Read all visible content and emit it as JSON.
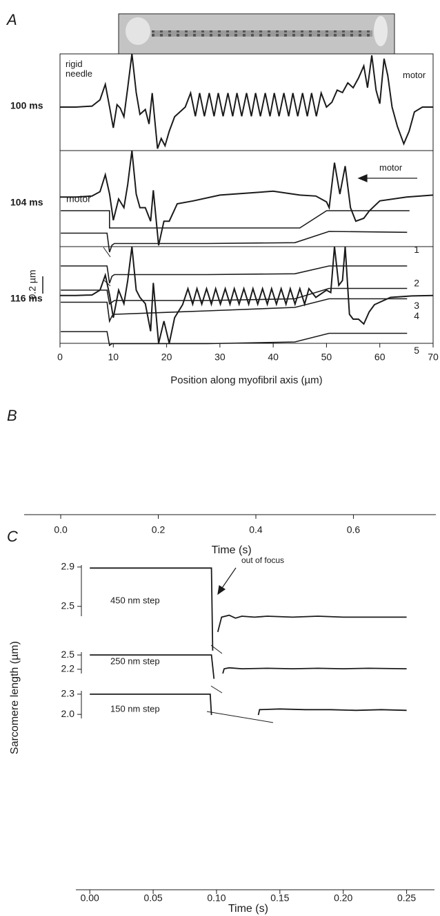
{
  "chart_data": [
    {
      "type": "line",
      "label": "A",
      "xlabel": "Position along myofibril axis (µm)",
      "xlim": [
        0,
        70
      ],
      "xticks": [
        0,
        10,
        20,
        30,
        40,
        50,
        60,
        70
      ],
      "ylim": [
        -1,
        1
      ],
      "annotations": [
        "rigid needle",
        "motor",
        "motor"
      ],
      "series": [
        {
          "name": "100 ms",
          "color": "#1a1a1a",
          "x": [
            0,
            3,
            6,
            7.5,
            8.5,
            9.3,
            10,
            10.7,
            11.3,
            12,
            12.7,
            13.5,
            14.3,
            15,
            16,
            16.7,
            17.3,
            18.3,
            19,
            19.7,
            20.5,
            21.5,
            22.5,
            23.5,
            24.5,
            25.4,
            26.2,
            27.1,
            28,
            28.9,
            29.7,
            30.6,
            31.5,
            32.4,
            33.2,
            34.1,
            35,
            35.9,
            36.7,
            37.6,
            38.5,
            39.4,
            40.2,
            41.1,
            42,
            42.9,
            43.7,
            44.6,
            45.5,
            46.4,
            47.2,
            48.1,
            49,
            50,
            51,
            52,
            53,
            54,
            55,
            56,
            57,
            57.7,
            58.5,
            59.3,
            60,
            60.8,
            61.5,
            62.3,
            63.3,
            64.5,
            65.5,
            66.5,
            68,
            70
          ],
          "values": [
            -0.1,
            -0.1,
            -0.08,
            0.05,
            0.37,
            -0.1,
            -0.53,
            -0.05,
            -0.12,
            -0.3,
            0.3,
            1,
            0.2,
            -0.25,
            -0.15,
            -0.45,
            0.19,
            -0.96,
            -0.75,
            -0.9,
            -0.6,
            -0.3,
            -0.2,
            -0.1,
            0.19,
            -0.29,
            0.19,
            -0.29,
            0.19,
            -0.29,
            0.19,
            -0.29,
            0.19,
            -0.29,
            0.19,
            -0.29,
            0.19,
            -0.29,
            0.19,
            -0.29,
            0.19,
            -0.29,
            0.19,
            -0.29,
            0.19,
            -0.29,
            0.19,
            -0.29,
            0.19,
            -0.29,
            0.19,
            -0.29,
            0.19,
            -0.1,
            0.0,
            0.25,
            0.2,
            0.4,
            0.3,
            0.5,
            0.75,
            0.3,
            0.97,
            0.25,
            -0.03,
            0.9,
            0.55,
            -0.1,
            -0.5,
            -0.86,
            -0.6,
            -0.2,
            -0.1,
            -0.1
          ]
        },
        {
          "name": "104 ms",
          "color": "#1a1a1a",
          "x": [
            0,
            3,
            6,
            7.5,
            8.5,
            9.3,
            10,
            11,
            12,
            12.7,
            13.5,
            14.3,
            15,
            16,
            17,
            17.5,
            18.5,
            19.5,
            20.5,
            22,
            25,
            30,
            35,
            40,
            45,
            48,
            50,
            50.5,
            51.5,
            52.5,
            53.5,
            54.5,
            55.5,
            57,
            58,
            60,
            65,
            70
          ],
          "values": [
            0.04,
            0.04,
            0.06,
            0.15,
            0.5,
            0.1,
            -0.44,
            0,
            -0.18,
            0.3,
            1,
            0.1,
            -0.18,
            -0.18,
            -0.46,
            0.18,
            -0.96,
            -0.46,
            -0.46,
            -0.1,
            -0.04,
            0.08,
            0.12,
            0.16,
            0.08,
            0.06,
            -0.06,
            -0.18,
            0.75,
            0.1,
            0.68,
            -0.18,
            -0.46,
            -0.4,
            -0.25,
            -0.04,
            0.04,
            0.08
          ]
        },
        {
          "name": "116 ms",
          "color": "#1a1a1a",
          "x": [
            0,
            3,
            6,
            7.5,
            8.5,
            9.3,
            10,
            11,
            12,
            12.7,
            13.5,
            14.3,
            15,
            16,
            17,
            17.5,
            18.5,
            19.5,
            20.5,
            21.5,
            23,
            24,
            24.9,
            25.7,
            26.6,
            27.5,
            28.4,
            29.2,
            30.1,
            31,
            31.9,
            32.7,
            33.6,
            34.5,
            35.4,
            36.2,
            37.1,
            38,
            38.9,
            39.7,
            40.6,
            41.5,
            42.4,
            43.2,
            44.1,
            45,
            45.9,
            46.7,
            48,
            50,
            50.8,
            51.5,
            52.3,
            53,
            53.5,
            54.3,
            55,
            56,
            57,
            58,
            59,
            62,
            66,
            70
          ],
          "values": [
            -0.01,
            -0.01,
            0,
            0.1,
            0.41,
            0,
            -0.47,
            0.1,
            -0.18,
            0.3,
            1,
            0.1,
            -0.05,
            -0.18,
            -0.75,
            0.25,
            -1,
            -0.54,
            -1,
            -0.47,
            -0.2,
            0.13,
            -0.19,
            0.13,
            -0.19,
            0.13,
            -0.19,
            0.13,
            -0.19,
            0.13,
            -0.19,
            0.13,
            -0.19,
            0.13,
            -0.19,
            0.13,
            -0.19,
            0.13,
            -0.19,
            0.13,
            -0.19,
            0.13,
            -0.19,
            0.13,
            -0.19,
            0.13,
            -0.19,
            0.13,
            -0.05,
            0.1,
            0.05,
            1,
            0.2,
            0.3,
            1,
            -0.4,
            -0.5,
            -0.5,
            -0.6,
            -0.35,
            -0.2,
            -0.05,
            -0.02,
            -0.01
          ]
        }
      ]
    },
    {
      "type": "line",
      "label": "B",
      "xlabel": "Time (s)",
      "xlim": [
        -0.075,
        0.769
      ],
      "xticks": [
        {
          "value": 0,
          "label": "0.0"
        },
        0.2,
        0.4,
        0.6
      ],
      "ylim": [
        0,
        3.6
      ],
      "scale_bar": {
        "value": 0.2,
        "label": "0.2 µm"
      },
      "series": [
        {
          "name": "motor",
          "color": "#1a1a1a",
          "x": [
            0,
            0.1,
            0.1,
            0.49,
            0.545,
            0.715
          ],
          "values": [
            3.52,
            3.52,
            3.32,
            3.32,
            3.52,
            3.52
          ]
        },
        {
          "name": "1",
          "color": "#1a1a1a",
          "x": [
            0,
            0.095,
            0.1,
            0.105,
            0.11,
            0.3,
            0.48,
            0.55,
            0.71
          ],
          "values": [
            3.26,
            3.26,
            3.04,
            3.12,
            3.14,
            3.14,
            3.15,
            3.28,
            3.27
          ]
        },
        {
          "name": "2",
          "color": "#1a1a1a",
          "x": [
            0,
            0.095,
            0.1,
            0.105,
            0.11,
            0.3,
            0.48,
            0.55,
            0.71
          ],
          "values": [
            2.88,
            2.88,
            2.68,
            2.76,
            2.78,
            2.78,
            2.79,
            2.88,
            2.88
          ]
        },
        {
          "name": "3",
          "color": "#1a1a1a",
          "x": [
            0,
            0.095,
            0.1,
            0.105,
            0.11,
            0.3,
            0.48,
            0.55,
            0.71
          ],
          "values": [
            2.6,
            2.6,
            2.44,
            2.46,
            2.48,
            2.48,
            2.5,
            2.62,
            2.62
          ]
        },
        {
          "name": "4",
          "color": "#1a1a1a",
          "x": [
            0,
            0.095,
            0.1,
            0.105,
            0.11,
            0.3,
            0.48,
            0.55,
            0.71
          ],
          "values": [
            2.46,
            2.46,
            2.24,
            2.3,
            2.32,
            2.36,
            2.4,
            2.5,
            2.5
          ]
        },
        {
          "name": "5",
          "color": "#1a1a1a",
          "x": [
            0,
            0.095,
            0.1,
            0.105,
            0.11,
            0.3,
            0.48,
            0.55,
            0.71
          ],
          "values": [
            2.12,
            2.12,
            1.96,
            1.98,
            1.98,
            1.98,
            2.0,
            2.1,
            2.1
          ]
        }
      ]
    },
    {
      "type": "line",
      "label": "C",
      "xlabel": "Time (s)",
      "ylabel": "Sarcomere length (µm)",
      "annotation": "out of focus",
      "xlim": [
        -0.011,
        0.272
      ],
      "xticks": [
        {
          "value": 0,
          "label": "0.00"
        },
        0.05,
        {
          "value": 0.1,
          "label": "0.10"
        },
        0.15,
        {
          "value": 0.2,
          "label": "0.20"
        },
        0.25
      ],
      "panels": [
        {
          "name": "450 nm step",
          "color": "#1a1a1a",
          "ylim": [
            2.4,
            2.92
          ],
          "yticks": [
            2.9,
            2.5
          ],
          "x": [
            0,
            0.05,
            0.096,
            0.097,
            0.099,
            0.101,
            0.104,
            0.11,
            0.115,
            0.12,
            0.13,
            0.14,
            0.16,
            0.18,
            0.2,
            0.22,
            0.25
          ],
          "values": [
            2.89,
            2.89,
            2.89,
            2.05,
            null,
            2.24,
            2.39,
            2.41,
            2.38,
            2.4,
            2.39,
            2.4,
            2.39,
            2.4,
            2.39,
            2.39,
            2.39
          ]
        },
        {
          "name": "250 nm step",
          "color": "#1a1a1a",
          "ylim": [
            2.11,
            2.56
          ],
          "yticks": [
            2.5,
            2.2
          ],
          "x": [
            0,
            0.05,
            0.096,
            0.098,
            0.101,
            0.105,
            0.106,
            0.11,
            0.12,
            0.14,
            0.16,
            0.18,
            0.2,
            0.22,
            0.25
          ],
          "values": [
            2.5,
            2.5,
            2.5,
            2.0,
            null,
            2.11,
            2.21,
            2.23,
            2.21,
            2.22,
            2.21,
            2.22,
            2.21,
            2.22,
            2.21
          ]
        },
        {
          "name": "150 nm step",
          "color": "#1a1a1a",
          "ylim": [
            1.94,
            2.35
          ],
          "yticks": [
            2.3,
            {
              "value": 2.0,
              "label": "2.0"
            }
          ],
          "x": [
            0,
            0.05,
            0.095,
            0.096,
            0.11,
            0.133,
            0.134,
            0.15,
            0.17,
            0.19,
            0.21,
            0.23,
            0.25
          ],
          "values": [
            2.3,
            2.3,
            2.3,
            1.99,
            null,
            1.99,
            2.07,
            2.08,
            2.07,
            2.07,
            2.06,
            2.07,
            2.06
          ]
        }
      ]
    }
  ]
}
